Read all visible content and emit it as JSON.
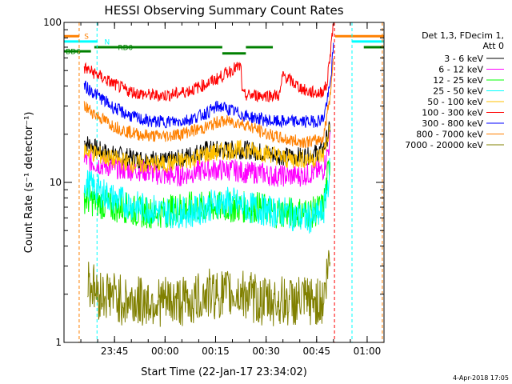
{
  "chart_data": {
    "type": "line",
    "title": "HESSI Observing Summary Count Rates",
    "xlabel": "Start Time (22-Jan-17 23:34:02)",
    "ylabel": "Count Rate (s⁻¹ detector⁻¹)",
    "x_unit": "minutes",
    "xlim": [
      -4.0,
      91.0
    ],
    "ylim": [
      1,
      100
    ],
    "y_scale": "log",
    "x_ticks": [
      {
        "value": 11,
        "label": "23:45"
      },
      {
        "value": 26,
        "label": "00:00"
      },
      {
        "value": 41,
        "label": "00:15"
      },
      {
        "value": 56,
        "label": "00:30"
      },
      {
        "value": 71,
        "label": "00:45"
      },
      {
        "value": 86,
        "label": "01:00"
      }
    ],
    "y_ticks": [
      {
        "value": 1,
        "label": "1"
      },
      {
        "value": 10,
        "label": "10"
      },
      {
        "value": 100,
        "label": "100"
      }
    ],
    "grid": false,
    "legend_header": [
      "Det 1,3, FDecim 1,",
      "Att 0"
    ],
    "legend_position": "right",
    "series": [
      {
        "name": "3 - 6 keV",
        "color": "#000000",
        "x": [
          2,
          6,
          10,
          14,
          18,
          22,
          26,
          30,
          34,
          38,
          42,
          46,
          50,
          54,
          58,
          62,
          66,
          70,
          73,
          75
        ],
        "y": [
          18,
          16,
          15,
          14.5,
          14,
          14,
          13.5,
          14,
          15,
          16,
          16,
          16,
          16,
          15.5,
          15,
          14.5,
          14.5,
          15,
          16,
          22
        ]
      },
      {
        "name": "6 - 12 keV",
        "color": "#ff00ff",
        "x": [
          2,
          6,
          10,
          14,
          18,
          22,
          26,
          30,
          34,
          38,
          42,
          46,
          50,
          54,
          58,
          62,
          66,
          70,
          73,
          75
        ],
        "y": [
          14,
          13,
          12.5,
          12,
          12,
          11.5,
          11,
          11,
          11.5,
          12,
          12,
          12,
          11.5,
          11.5,
          11,
          11,
          11,
          11.5,
          12,
          18
        ]
      },
      {
        "name": "12 - 25 keV",
        "color": "#00ff00",
        "x": [
          2,
          6,
          10,
          14,
          18,
          22,
          26,
          30,
          34,
          38,
          42,
          46,
          50,
          54,
          58,
          62,
          66,
          70,
          73,
          75
        ],
        "y": [
          8,
          7.5,
          7,
          7,
          6.5,
          6.5,
          6.5,
          7,
          7,
          7,
          7,
          7,
          7,
          7,
          6.5,
          6.5,
          6.5,
          6.5,
          7,
          14
        ]
      },
      {
        "name": "25 - 50 keV",
        "color": "#00ffff",
        "x": [
          2,
          6,
          10,
          14,
          18,
          22,
          26,
          30,
          34,
          38,
          42,
          46,
          50,
          54,
          58,
          62,
          66,
          70,
          73,
          75
        ],
        "y": [
          10,
          9,
          8,
          7.5,
          7,
          6.8,
          6.5,
          6.5,
          6.5,
          7,
          7.5,
          7.5,
          7,
          6.8,
          6.5,
          6.5,
          6,
          6,
          6.5,
          12
        ]
      },
      {
        "name": "50 - 100 keV",
        "color": "#ffc000",
        "x": [
          2,
          6,
          10,
          14,
          18,
          22,
          26,
          30,
          34,
          38,
          42,
          46,
          50,
          54,
          58,
          62,
          66,
          70,
          73,
          75
        ],
        "y": [
          16,
          15,
          14,
          13.5,
          13,
          13,
          13,
          13.5,
          14,
          15,
          15.5,
          16,
          16,
          15.5,
          15,
          14,
          14,
          14,
          15,
          22
        ]
      },
      {
        "name": "100 - 300 keV",
        "color": "#ff0000",
        "x": [
          2,
          6,
          10,
          14,
          18,
          22,
          26,
          30,
          34,
          38,
          42,
          46,
          48.5,
          49,
          55,
          60,
          61,
          64,
          68,
          72,
          74,
          76
        ],
        "y": [
          52,
          47,
          42,
          38,
          36,
          35,
          35,
          36,
          38,
          41,
          45,
          51,
          53,
          35,
          35,
          35,
          47,
          42,
          37,
          36,
          40,
          100
        ]
      },
      {
        "name": "300 - 800 keV",
        "color": "#0000ff",
        "x": [
          2,
          6,
          10,
          14,
          18,
          22,
          26,
          30,
          34,
          38,
          42,
          46,
          50,
          54,
          58,
          62,
          66,
          70,
          73,
          75,
          76
        ],
        "y": [
          40,
          35,
          30,
          27,
          25,
          24,
          24,
          24,
          25,
          27,
          30,
          28,
          26,
          25,
          24,
          24,
          24,
          24,
          25,
          40,
          70
        ]
      },
      {
        "name": "800 - 7000 keV",
        "color": "#ff8000",
        "x": [
          2,
          6,
          10,
          14,
          18,
          22,
          26,
          30,
          34,
          38,
          42,
          46,
          50,
          54,
          58,
          62,
          66,
          70,
          73,
          75,
          76
        ],
        "y": [
          30,
          26,
          23,
          21,
          20,
          19.5,
          19.5,
          20,
          21,
          22,
          24,
          24,
          23,
          21,
          19.5,
          18.5,
          18,
          18,
          19,
          35,
          60
        ]
      },
      {
        "name": "7000 - 20000 keV",
        "color": "#808000",
        "x": [
          3,
          6,
          10,
          14,
          18,
          22,
          26,
          30,
          34,
          38,
          42,
          46,
          50,
          54,
          58,
          62,
          66,
          70,
          73,
          75
        ],
        "y": [
          2.5,
          2,
          2,
          1.8,
          1.8,
          1.8,
          1.8,
          1.8,
          1.8,
          2,
          2,
          2,
          2,
          1.8,
          1.8,
          1.8,
          1.8,
          1.8,
          1.8,
          3.5
        ]
      }
    ],
    "flag_bars": [
      {
        "label": "S",
        "color": "#ff8000",
        "y": 82,
        "segments": [
          [
            -4,
            0.5
          ],
          [
            76.5,
            91
          ]
        ]
      },
      {
        "label": "N",
        "color": "#00ffff",
        "y": 76,
        "segments": [
          [
            -4,
            6
          ],
          [
            81.5,
            91
          ]
        ]
      },
      {
        "label": "RD0",
        "color": "#008000",
        "y": 70,
        "segments": [
          [
            5,
            43
          ],
          [
            50,
            58
          ],
          [
            85,
            91
          ]
        ]
      },
      {
        "label": "BD6",
        "color": "#008000",
        "y": 66,
        "segments": [
          [
            -4,
            4
          ]
        ]
      },
      {
        "label": "",
        "color": "#008000",
        "y": 64,
        "segments": [
          [
            43,
            50
          ]
        ]
      }
    ],
    "vertical_markers": [
      {
        "x": 0.5,
        "color": "#ff8000"
      },
      {
        "x": 5.8,
        "color": "#00ffff"
      },
      {
        "x": 76.3,
        "color": "#ff0000"
      },
      {
        "x": 81.5,
        "color": "#00ffff"
      },
      {
        "x": 90.5,
        "color": "#ff8000"
      }
    ],
    "footer_date": "4-Apr-2018 17:05"
  }
}
